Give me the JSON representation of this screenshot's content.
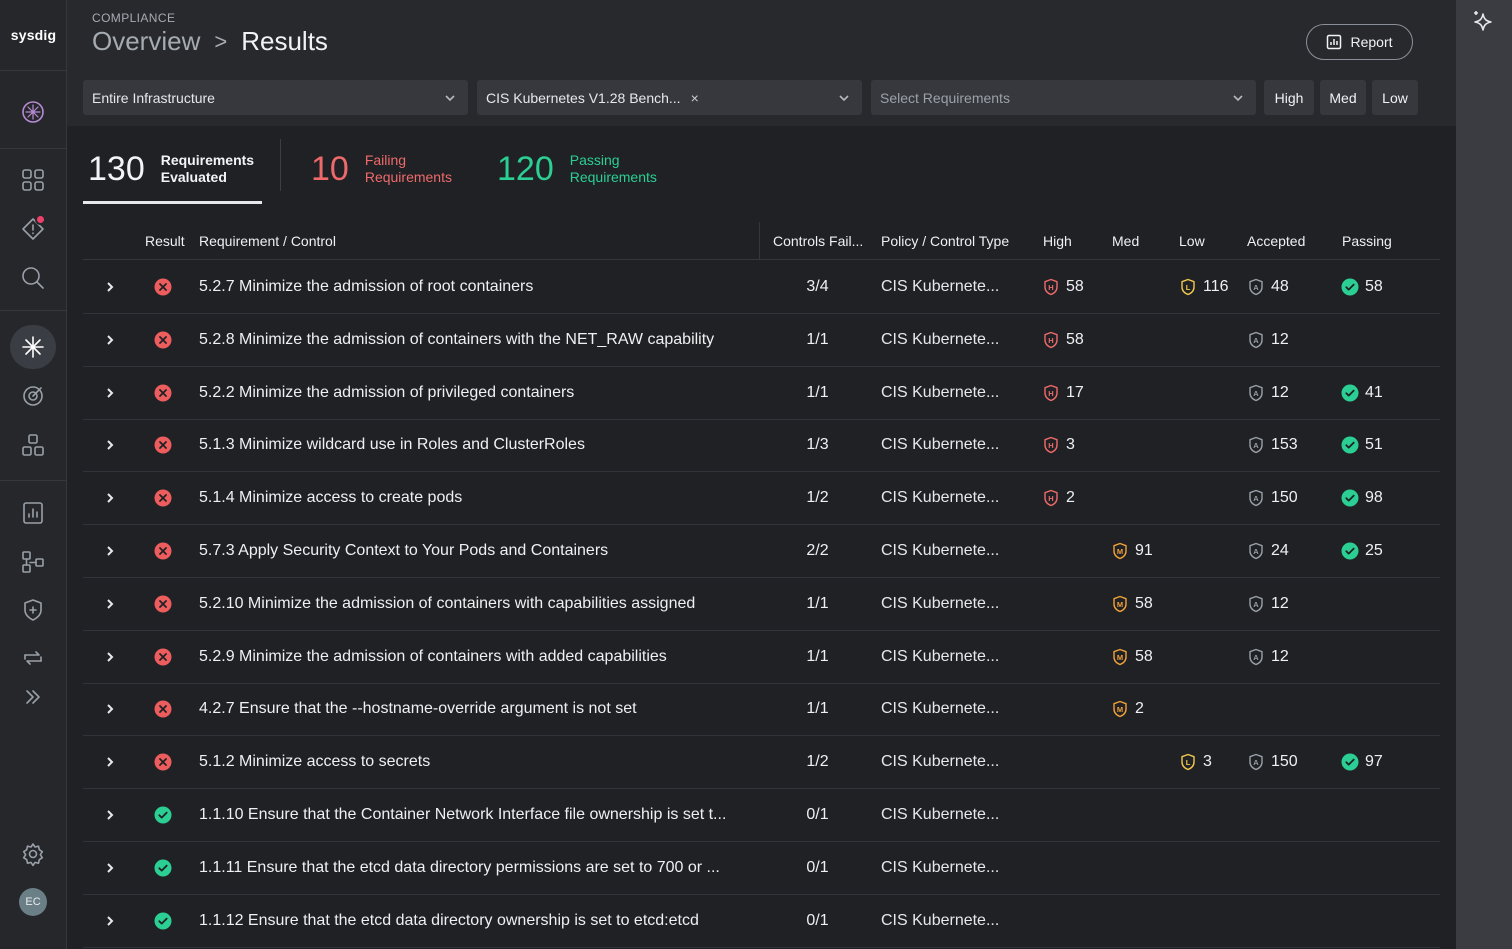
{
  "nav": {
    "brand": "sysdig",
    "avatar_initials": "EC",
    "icons": [
      "sysdig-logo-icon",
      "dashboard-icon",
      "alerts-icon",
      "search-icon",
      "compliance-icon",
      "threat-icon",
      "inventory-icon",
      "reports-icon",
      "integrations-icon",
      "policies-icon",
      "sync-icon",
      "expand-icon",
      "settings-icon"
    ]
  },
  "header": {
    "eyebrow": "COMPLIANCE",
    "breadcrumb_parent": "Overview",
    "breadcrumb_separator": ">",
    "breadcrumb_current": "Results",
    "report_label": "Report"
  },
  "filters": {
    "scope": "Entire Infrastructure",
    "policy": "CIS Kubernetes V1.28 Bench...",
    "policy_clear": "×",
    "requirements_placeholder": "Select Requirements",
    "sev_high": "High",
    "sev_med": "Med",
    "sev_low": "Low"
  },
  "summary": {
    "total_num": "130",
    "total_l1": "Requirements",
    "total_l2": "Evaluated",
    "fail_num": "10",
    "fail_l1": "Failing",
    "fail_l2": "Requirements",
    "pass_num": "120",
    "pass_l1": "Passing",
    "pass_l2": "Requirements"
  },
  "table": {
    "headers": {
      "result": "Result",
      "requirement": "Requirement / Control",
      "controls_failing": "Controls Fail...",
      "policy": "Policy / Control Type",
      "high": "High",
      "med": "Med",
      "low": "Low",
      "accepted": "Accepted",
      "passing": "Passing"
    },
    "rows": [
      {
        "status": "fail",
        "req": "5.2.7 Minimize the admission of root containers",
        "cf": "3/4",
        "policy": "CIS Kubernete...",
        "high": "58",
        "med": "",
        "low": "116",
        "accepted": "48",
        "passing": "58"
      },
      {
        "status": "fail",
        "req": "5.2.8 Minimize the admission of containers with the NET_RAW capability",
        "cf": "1/1",
        "policy": "CIS Kubernete...",
        "high": "58",
        "med": "",
        "low": "",
        "accepted": "12",
        "passing": ""
      },
      {
        "status": "fail",
        "req": "5.2.2 Minimize the admission of privileged containers",
        "cf": "1/1",
        "policy": "CIS Kubernete...",
        "high": "17",
        "med": "",
        "low": "",
        "accepted": "12",
        "passing": "41"
      },
      {
        "status": "fail",
        "req": "5.1.3 Minimize wildcard use in Roles and ClusterRoles",
        "cf": "1/3",
        "policy": "CIS Kubernete...",
        "high": "3",
        "med": "",
        "low": "",
        "accepted": "153",
        "passing": "51"
      },
      {
        "status": "fail",
        "req": "5.1.4 Minimize access to create pods",
        "cf": "1/2",
        "policy": "CIS Kubernete...",
        "high": "2",
        "med": "",
        "low": "",
        "accepted": "150",
        "passing": "98"
      },
      {
        "status": "fail",
        "req": "5.7.3 Apply Security Context to Your Pods and Containers",
        "cf": "2/2",
        "policy": "CIS Kubernete...",
        "high": "",
        "med": "91",
        "low": "",
        "accepted": "24",
        "passing": "25"
      },
      {
        "status": "fail",
        "req": "5.2.10 Minimize the admission of containers with capabilities assigned",
        "cf": "1/1",
        "policy": "CIS Kubernete...",
        "high": "",
        "med": "58",
        "low": "",
        "accepted": "12",
        "passing": ""
      },
      {
        "status": "fail",
        "req": "5.2.9 Minimize the admission of containers with added capabilities",
        "cf": "1/1",
        "policy": "CIS Kubernete...",
        "high": "",
        "med": "58",
        "low": "",
        "accepted": "12",
        "passing": ""
      },
      {
        "status": "fail",
        "req": "4.2.7 Ensure that the --hostname-override argument is not set",
        "cf": "1/1",
        "policy": "CIS Kubernete...",
        "high": "",
        "med": "2",
        "low": "",
        "accepted": "",
        "passing": ""
      },
      {
        "status": "fail",
        "req": "5.1.2 Minimize access to secrets",
        "cf": "1/2",
        "policy": "CIS Kubernete...",
        "high": "",
        "med": "",
        "low": "3",
        "accepted": "150",
        "passing": "97"
      },
      {
        "status": "pass",
        "req": "1.1.10 Ensure that the Container Network Interface file ownership is set t...",
        "cf": "0/1",
        "policy": "CIS Kubernete...",
        "high": "",
        "med": "",
        "low": "",
        "accepted": "",
        "passing": ""
      },
      {
        "status": "pass",
        "req": "1.1.11 Ensure that the etcd data directory permissions are set to 700 or ...",
        "cf": "0/1",
        "policy": "CIS Kubernete...",
        "high": "",
        "med": "",
        "low": "",
        "accepted": "",
        "passing": ""
      },
      {
        "status": "pass",
        "req": "1.1.12 Ensure that the etcd data directory ownership is set to etcd:etcd",
        "cf": "0/1",
        "policy": "CIS Kubernete...",
        "high": "",
        "med": "",
        "low": "",
        "accepted": "",
        "passing": ""
      }
    ]
  },
  "colors": {
    "fail": "#ee5d5d",
    "pass": "#2ccf93",
    "high": "#ee6a6a",
    "med": "#f0a23b",
    "low": "#f2c94c",
    "accepted": "#9aa0a8"
  }
}
